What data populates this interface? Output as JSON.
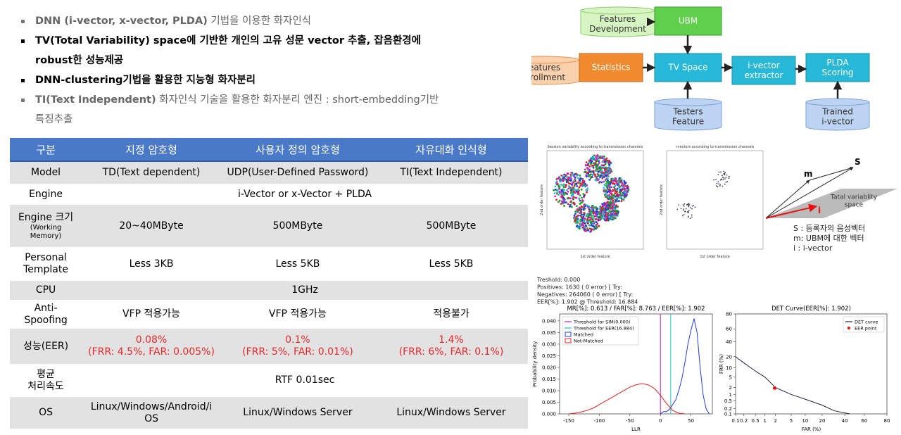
{
  "bullets": [
    {
      "parts": [
        {
          "text": "DNN (i-vector, x-vector, PLDA)",
          "bold": true
        },
        {
          "text": " 기법을 이용한 화자인식",
          "bold": false
        }
      ],
      "dark": false
    },
    {
      "parts": [
        {
          "text": "TV(Total Variability) space에 기반한 개인의 고유 성문 vector 추출, 잡음환경에 robust한 성능제공",
          "bold": true
        }
      ],
      "dark": true
    },
    {
      "parts": [
        {
          "text": "DNN-clustering기법을 활용한 지능형 화자분리",
          "bold": true
        }
      ],
      "dark": true
    },
    {
      "parts": [
        {
          "text": "TI(Text Independent)",
          "bold": true
        },
        {
          "text": " 화자인식 기술을 활용한 화자분리 엔진 : short-embedding기반 특징추출",
          "bold": false
        }
      ],
      "dark": false
    }
  ],
  "table": {
    "header": [
      "구분",
      "지정 암호형",
      "사용자 정의 암호형",
      "자유대화 인식형"
    ],
    "rows": [
      {
        "label": "Model",
        "cells": [
          "TD(Text dependent)",
          "UDP(User-Defined Password)",
          "TI(Text Independent)"
        ]
      },
      {
        "label": "Engine",
        "cells": [
          "i-Vector or x-Vector + PLDA"
        ]
      },
      {
        "label": "Engine 크기",
        "note": "(Working\nMemory)",
        "cells": [
          "20~40MByte",
          "500MByte",
          "500MByte"
        ]
      },
      {
        "label": "Personal\nTemplate",
        "cells": [
          "Less 3KB",
          "Less 5KB",
          "Less 5KB"
        ]
      },
      {
        "label": "CPU",
        "cells": [
          "1GHz"
        ]
      },
      {
        "label": "Anti-\nSpoofing",
        "cells": [
          "VFP 적용가능",
          "VFP 적용가능",
          "적용불가"
        ]
      },
      {
        "label": "성능(EER)",
        "cells": [
          "0.08%\n(FRR: 4.5%, FAR: 0.005%)",
          "0.1%\n(FRR: 5%, FAR: 0.01%)",
          "1.4%\n(FRR: 6%, FAR: 0.1%)"
        ],
        "color": "#e8262a"
      },
      {
        "label": "평균\n처리속도",
        "cells": [
          "RTF 0.01sec"
        ]
      },
      {
        "label": "OS",
        "cells": [
          "Linux/Windows/Android/i\nOS",
          "Linux/Windows Server",
          "Linux/Windows Server"
        ]
      }
    ]
  },
  "diagram": {
    "nodes": [
      {
        "label": "Features\nDevelopment",
        "shape": "cylinder",
        "color": "#d6f5c2",
        "stroke": "#8cc968"
      },
      {
        "label": "UBM",
        "shape": "box",
        "color": "#5fcf4c",
        "stroke": "#3a9e2c"
      },
      {
        "label": "Features\nEnrollment",
        "shape": "cylinder",
        "color": "#fbd0ad",
        "stroke": "#e79552"
      },
      {
        "label": "Statistics",
        "shape": "box",
        "color": "#ef8a2e",
        "stroke": "#c66a18"
      },
      {
        "label": "TV Space",
        "shape": "box",
        "color": "#27b8d8",
        "stroke": "#1790ad"
      },
      {
        "label": "i-vector\nextractor",
        "shape": "box",
        "color": "#27b8d8",
        "stroke": "#1790ad"
      },
      {
        "label": "PLDA\nScoring",
        "shape": "box",
        "color": "#27b8d8",
        "stroke": "#1790ad"
      },
      {
        "label": "Testers\nFeature",
        "shape": "cylinder",
        "color": "#bcd3f2",
        "stroke": "#7ea3d6"
      },
      {
        "label": "Trained\ni-vector",
        "shape": "cylinder",
        "color": "#bcd3f2",
        "stroke": "#7ea3d6"
      }
    ]
  },
  "scatters": [
    {
      "title": "Session variability according to transmission channels",
      "xlabel": "1st order feature",
      "ylabel": "2nd order feature"
    },
    {
      "title": "i-vectors according to transmission channels",
      "xlabel": "1st order feature",
      "ylabel": "2nd order feature"
    }
  ],
  "vectors": {
    "s": "S",
    "m": "m",
    "i": "i",
    "plane": "Tatal variablity\nspace",
    "legend": [
      "S : 등록자의 음성벡터",
      "m: UBM에 대한 벡터",
      "i  :  i-vector"
    ]
  },
  "console": [
    "Treshold: 0.000",
    "Positives:        1630 (          0 error) [ Try:",
    "Negatives:      264060 (          0 error) [ Try:",
    "EER[%]: 1.902 @ Threshold: 16.884"
  ],
  "chart_data": [
    {
      "type": "line",
      "title": "MR[%]: 0.613 / FAR[%]: 8.763 / EER[%]: 1.902",
      "xlabel": "LLR",
      "ylabel": "Probability density",
      "xlim": [
        -165,
        85
      ],
      "xticks": [
        -150,
        -100,
        -50,
        0,
        50
      ],
      "ylim": [
        0,
        0.043
      ],
      "yticks": [
        {
          "value": 0,
          "label": "0.000"
        },
        {
          "value": 0.005,
          "label": "0.005"
        },
        {
          "value": 0.01,
          "label": "0.010"
        },
        {
          "value": 0.015,
          "label": "0.015"
        },
        {
          "value": 0.02,
          "label": "0.020"
        },
        {
          "value": 0.025,
          "label": "0.025"
        },
        {
          "value": 0.03,
          "label": "0.030"
        },
        {
          "value": 0.035,
          "label": "0.035"
        },
        {
          "value": 0.04,
          "label": "0.040"
        }
      ],
      "thresholds": [
        {
          "name": "Threshold for SIM(0.000)",
          "value": 0,
          "color": "#c020c0"
        },
        {
          "name": "Threshold for EER(16.884)",
          "value": 16.884,
          "color": "#20c0c0"
        }
      ],
      "series": [
        {
          "name": "Matched",
          "color": "#1f3fd8",
          "x": [
            0,
            5,
            10,
            15,
            20,
            25,
            30,
            35,
            40,
            45,
            50,
            55,
            60,
            65,
            70,
            75,
            80
          ],
          "values": [
            0,
            0.001,
            0.001,
            0.002,
            0.004,
            0.006,
            0.01,
            0.015,
            0.022,
            0.03,
            0.036,
            0.041,
            0.035,
            0.02,
            0.008,
            0.002,
            0
          ]
        },
        {
          "name": "Not-Matched",
          "color": "#e82020",
          "x": [
            -150,
            -140,
            -130,
            -120,
            -110,
            -100,
            -90,
            -80,
            -70,
            -60,
            -50,
            -40,
            -30,
            -20,
            -10,
            0,
            10,
            20,
            30,
            40
          ],
          "values": [
            0,
            0.0003,
            0.0008,
            0.0015,
            0.0025,
            0.004,
            0.0055,
            0.007,
            0.0085,
            0.01,
            0.0115,
            0.0125,
            0.013,
            0.0125,
            0.011,
            0.008,
            0.0045,
            0.0015,
            0.0003,
            0
          ]
        }
      ]
    },
    {
      "type": "det",
      "title": "DET Curve(EER[%]: 1.902)",
      "xlabel": "FAR (%)",
      "ylabel": "FRR (%)",
      "xlim": [
        0.1,
        80
      ],
      "ylim": [
        0.1,
        80
      ],
      "xticks": [
        0.1,
        0.2,
        0.5,
        1,
        2,
        5,
        10,
        20,
        40,
        60,
        80
      ],
      "yticks": [
        0.1,
        0.2,
        0.5,
        1,
        2,
        5,
        10,
        20,
        40,
        60,
        80
      ],
      "series": [
        {
          "name": "DET curve",
          "color": "#222244",
          "x": [
            0.1,
            0.2,
            0.5,
            1,
            2,
            5,
            10,
            20,
            30,
            45
          ],
          "values": [
            20,
            14,
            8,
            5,
            2,
            1,
            0.6,
            0.3,
            0.15,
            0.1
          ]
        },
        {
          "name": "EER point",
          "color": "#e81010",
          "x": [
            1.902
          ],
          "values": [
            1.902
          ]
        }
      ]
    }
  ]
}
